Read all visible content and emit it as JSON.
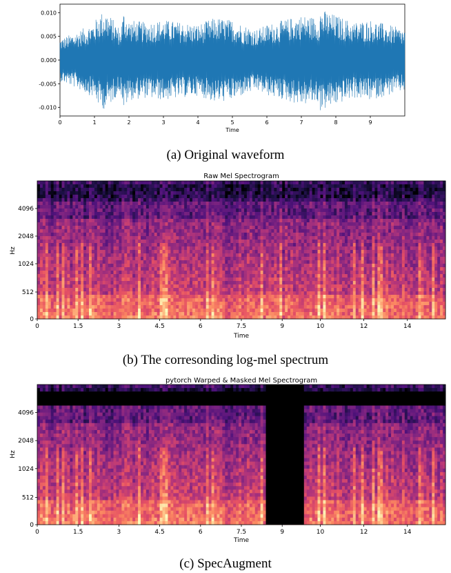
{
  "colors": {
    "waveform": "#1f77b4",
    "mask": "#000000",
    "spectrogram_cmap": "magma"
  },
  "captions": {
    "a": "(a) Original waveform",
    "b": "(b) The corresonding log-mel spectrum",
    "c": "(c) SpecAugment"
  },
  "chart_data": [
    {
      "type": "line",
      "xlabel": "Time",
      "xlim": [
        0,
        10
      ],
      "ylim": [
        -0.0118,
        0.0118
      ],
      "x_ticks": [
        "0",
        "1",
        "2",
        "3",
        "4",
        "5",
        "6",
        "7",
        "8",
        "9"
      ],
      "y_ticks": [
        "0.010",
        "0.005",
        "0.000",
        "-0.005",
        "-0.010"
      ],
      "envelope": {
        "t": [
          0,
          0.5,
          1.0,
          1.1,
          1.3,
          1.5,
          1.75,
          1.85,
          2.0,
          2.5,
          3.0,
          3.5,
          4.0,
          4.5,
          5.0,
          5.3,
          5.7,
          6.0,
          6.5,
          7.0,
          7.5,
          7.55,
          8.0,
          8.5,
          9.0,
          9.5,
          10.0
        ],
        "amp": [
          0.0045,
          0.006,
          0.008,
          0.0095,
          0.0105,
          0.009,
          0.0065,
          0.0105,
          0.0085,
          0.008,
          0.0085,
          0.008,
          0.0075,
          0.009,
          0.0085,
          0.0075,
          0.0065,
          0.0075,
          0.0085,
          0.0095,
          0.009,
          0.0108,
          0.0095,
          0.008,
          0.0085,
          0.0075,
          0.0065
        ]
      }
    },
    {
      "type": "heatmap",
      "title": "Raw Mel Spectrogram",
      "xlabel": "Time",
      "ylabel": "Hz",
      "x_ticks": [
        "0",
        "1.5",
        "3",
        "4.5",
        "6",
        "7.5",
        "9",
        "10",
        "12",
        "14"
      ],
      "y_ticks": [
        "0",
        "512",
        "1024",
        "2048",
        "4096"
      ],
      "xlim": [
        0,
        15.0
      ],
      "masks": []
    },
    {
      "type": "heatmap",
      "title": "pytorch Warped & Masked Mel Spectrogram",
      "xlabel": "Time",
      "ylabel": "Hz",
      "x_ticks": [
        "0",
        "1.5",
        "3",
        "4.5",
        "6",
        "7.5",
        "9",
        "10",
        "12",
        "14"
      ],
      "y_ticks": [
        "0",
        "512",
        "1024",
        "2048",
        "4096"
      ],
      "xlim": [
        0,
        15.0
      ],
      "masks": [
        {
          "kind": "time",
          "from": 8.4,
          "to": 9.8
        },
        {
          "kind": "frequency",
          "from_fraction": 0.85,
          "to_fraction": 0.95
        }
      ]
    }
  ]
}
